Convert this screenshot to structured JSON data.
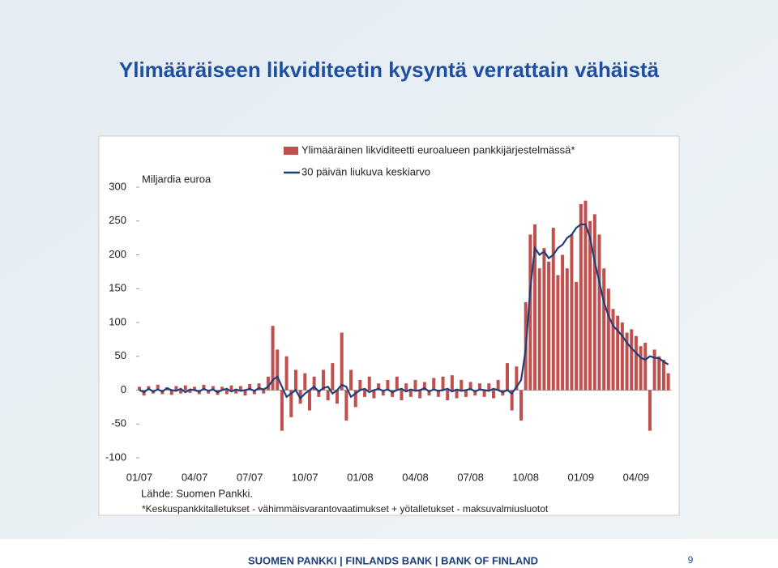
{
  "title": "Ylimääräiseen likviditeetin kysyntä verrattain vähäistä",
  "footer": "SUOMEN PANKKI | FINLANDS BANK | BANK OF FINLAND",
  "page_number": "9",
  "chart_data": {
    "type": "bar",
    "y_label": "Miljardia euroa",
    "source": "Lähde: Suomen Pankki.",
    "note": "*Keskuspankkitalletukset - vähimmäisvarantovaatimukset + yötalletukset - maksuvalmiusluotot",
    "ylim": [
      -100,
      300
    ],
    "yticks": [
      -100,
      -50,
      0,
      50,
      100,
      150,
      200,
      250,
      300
    ],
    "categories": [
      "01/07",
      null,
      null,
      null,
      null,
      null,
      null,
      null,
      null,
      null,
      null,
      null,
      "04/07",
      null,
      null,
      null,
      null,
      null,
      null,
      null,
      null,
      null,
      null,
      null,
      "07/07",
      null,
      null,
      null,
      null,
      null,
      null,
      null,
      null,
      null,
      null,
      null,
      "10/07",
      null,
      null,
      null,
      null,
      null,
      null,
      null,
      null,
      null,
      null,
      null,
      "01/08",
      null,
      null,
      null,
      null,
      null,
      null,
      null,
      null,
      null,
      null,
      null,
      "04/08",
      null,
      null,
      null,
      null,
      null,
      null,
      null,
      null,
      null,
      null,
      null,
      "07/08",
      null,
      null,
      null,
      null,
      null,
      null,
      null,
      null,
      null,
      null,
      null,
      "10/08",
      null,
      null,
      null,
      null,
      null,
      null,
      null,
      null,
      null,
      null,
      null,
      "01/09",
      null,
      null,
      null,
      null,
      null,
      null,
      null,
      null,
      null,
      null,
      null,
      "04/09",
      null,
      null,
      null,
      null,
      null,
      null,
      null
    ],
    "series": [
      {
        "name": "Ylimääräinen likviditeetti euroalueen pankkijärjestelmässä*",
        "type": "bar",
        "color": "#c0504d",
        "values": [
          5,
          -8,
          6,
          -5,
          8,
          -6,
          4,
          -7,
          6,
          -5,
          7,
          -4,
          5,
          -6,
          8,
          -5,
          6,
          -7,
          5,
          -6,
          7,
          -5,
          6,
          -8,
          9,
          -6,
          10,
          -5,
          20,
          95,
          60,
          -60,
          50,
          -40,
          30,
          -20,
          25,
          -30,
          20,
          -10,
          30,
          -15,
          40,
          -20,
          85,
          -45,
          30,
          -25,
          15,
          -10,
          20,
          -12,
          10,
          -8,
          15,
          -10,
          20,
          -15,
          10,
          -10,
          15,
          -12,
          12,
          -8,
          18,
          -10,
          20,
          -15,
          22,
          -12,
          15,
          -10,
          12,
          -8,
          10,
          -10,
          10,
          -12,
          15,
          -8,
          40,
          -30,
          35,
          -45,
          130,
          230,
          245,
          180,
          210,
          190,
          240,
          170,
          200,
          180,
          230,
          160,
          275,
          280,
          250,
          260,
          230,
          180,
          150,
          120,
          110,
          100,
          85,
          90,
          80,
          65,
          70,
          -60,
          60,
          50,
          45,
          25
        ]
      },
      {
        "name": "30 päivän liukuva keskiarvo",
        "type": "line",
        "color": "#1f3f7a",
        "values": [
          0,
          -3,
          2,
          -2,
          1,
          -2,
          3,
          0,
          -1,
          2,
          -3,
          1,
          0,
          -2,
          2,
          -1,
          1,
          -3,
          0,
          2,
          -2,
          1,
          -1,
          0,
          2,
          -1,
          3,
          1,
          5,
          15,
          20,
          5,
          -10,
          -5,
          0,
          -12,
          -5,
          0,
          5,
          -2,
          3,
          5,
          -5,
          0,
          8,
          5,
          -10,
          -5,
          0,
          2,
          -3,
          0,
          2,
          -1,
          1,
          -3,
          0,
          2,
          -2,
          1,
          -1,
          0,
          3,
          -2,
          1,
          -1,
          0,
          2,
          -2,
          1,
          -1,
          0,
          2,
          -2,
          1,
          0,
          -1,
          2,
          0,
          -3,
          0,
          -5,
          5,
          15,
          60,
          150,
          210,
          200,
          205,
          195,
          200,
          210,
          215,
          225,
          230,
          240,
          245,
          245,
          225,
          190,
          160,
          130,
          110,
          95,
          88,
          80,
          70,
          62,
          55,
          48,
          45,
          50,
          48,
          47,
          42,
          38
        ]
      }
    ]
  }
}
